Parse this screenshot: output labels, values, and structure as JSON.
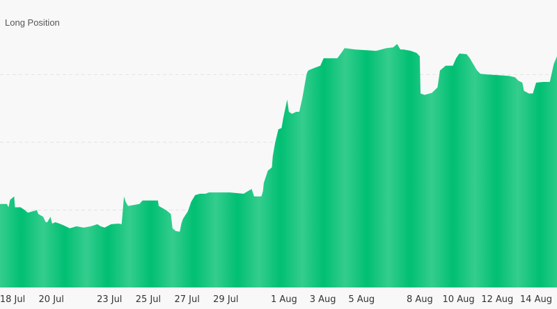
{
  "chart_data": {
    "type": "area",
    "legend": [
      "Long Position"
    ],
    "legend_placement": "top-left",
    "xlabel": "",
    "ylabel": "",
    "ylim": [
      0,
      4.1
    ],
    "grid": {
      "horizontal": true,
      "style": "dashed",
      "lines": [
        1,
        2,
        3
      ]
    },
    "x_ticks": [
      "18 Jul",
      "20 Jul",
      "23 Jul",
      "25 Jul",
      "27 Jul",
      "29 Jul",
      "1 Aug",
      "3 Aug",
      "5 Aug",
      "8 Aug",
      "10 Aug",
      "12 Aug",
      "14 Aug"
    ],
    "colors": {
      "fill": "#1ec981",
      "fill_dark": "#00bf73",
      "fill_light": "#35cd8e",
      "grid": "#e2e2e2",
      "background": "#f8f8f8"
    },
    "series": [
      {
        "name": "Long Position",
        "x": [
          "07-17 08",
          "07-17 17",
          "07-17 19",
          "07-17 21",
          "07-18 02",
          "07-18 03",
          "07-18 10",
          "07-18 15",
          "07-18 19",
          "07-19 04",
          "07-19 06",
          "07-19 08",
          "07-19 14",
          "07-19 17",
          "07-19 19",
          "07-19 23",
          "07-20 01",
          "07-20 05",
          "07-20 10",
          "07-20 14",
          "07-20 23",
          "07-21 07",
          "07-21 16",
          "07-22 01",
          "07-22 09",
          "07-22 13",
          "07-22 18",
          "07-23 02",
          "07-23 11",
          "07-23 15",
          "07-23 18",
          "07-23 20",
          "07-23 23",
          "07-24 04",
          "07-24 13",
          "07-24 17",
          "07-25 02",
          "07-25 12",
          "07-25 13",
          "07-25 19",
          "07-25 23",
          "07-26 04",
          "07-26 06",
          "07-26 10",
          "07-26 15",
          "07-26 17",
          "07-26 19",
          "07-27 01",
          "07-27 05",
          "07-27 10",
          "07-27 16",
          "07-27 23",
          "07-28 03",
          "07-28 12",
          "07-29 05",
          "07-29 22",
          "07-30 05",
          "07-30 08",
          "07-30 11",
          "07-30 20",
          "07-30 22",
          "07-30 23",
          "07-31 04",
          "07-31 09",
          "07-31 10",
          "07-31 13",
          "07-31 17",
          "07-31 21",
          "07-31 23",
          "08-01 02",
          "08-01 04",
          "08-01 06",
          "08-01 10",
          "08-01 15",
          "08-01 19",
          "08-01 23",
          "08-02 04",
          "08-02 06",
          "08-02 12",
          "08-02 21",
          "08-03 01",
          "08-03 18",
          "08-03 23",
          "08-04 03",
          "08-04 16",
          "08-05 18",
          "08-06 07",
          "08-06 15",
          "08-06 20",
          "08-07 00",
          "08-07 04",
          "08-07 13",
          "08-07 20",
          "08-08 00",
          "08-08 01",
          "08-08 06",
          "08-08 15",
          "08-08 22",
          "08-09 01",
          "08-09 08",
          "08-09 17",
          "08-09 21",
          "08-10 01",
          "08-10 10",
          "08-10 14",
          "08-10 18",
          "08-10 23",
          "08-11 03",
          "08-11 12",
          "08-12 01",
          "08-12 14",
          "08-12 22",
          "08-13 02",
          "08-13 07",
          "08-13 09",
          "08-13 15",
          "08-13 20",
          "08-14 00",
          "08-14 09",
          "08-14 17",
          "08-14 22",
          "08-15 02"
        ],
        "values": [
          1.09,
          1.09,
          1.04,
          1.15,
          1.2,
          1.04,
          1.04,
          1.0,
          0.96,
          0.99,
          1.0,
          0.94,
          0.9,
          0.82,
          0.82,
          0.9,
          0.8,
          0.82,
          0.8,
          0.78,
          0.73,
          0.76,
          0.74,
          0.76,
          0.79,
          0.76,
          0.74,
          0.79,
          0.8,
          0.79,
          1.2,
          1.12,
          1.06,
          1.07,
          1.09,
          1.14,
          1.14,
          1.14,
          1.06,
          1.02,
          0.99,
          0.94,
          0.73,
          0.69,
          0.68,
          0.8,
          0.87,
          0.98,
          1.12,
          1.22,
          1.24,
          1.24,
          1.26,
          1.26,
          1.26,
          1.24,
          1.29,
          1.31,
          1.2,
          1.2,
          1.28,
          1.4,
          1.58,
          1.63,
          1.79,
          1.99,
          2.19,
          2.21,
          2.35,
          2.52,
          2.63,
          2.45,
          2.42,
          2.45,
          2.45,
          2.67,
          3.01,
          3.06,
          3.09,
          3.13,
          3.24,
          3.24,
          3.32,
          3.39,
          3.37,
          3.35,
          3.39,
          3.4,
          3.45,
          3.37,
          3.37,
          3.35,
          3.32,
          3.27,
          2.72,
          2.7,
          2.73,
          2.81,
          3.06,
          3.13,
          3.13,
          3.24,
          3.31,
          3.3,
          3.24,
          3.16,
          3.06,
          3.01,
          3.0,
          2.99,
          2.98,
          2.96,
          2.91,
          2.88,
          2.76,
          2.72,
          2.72,
          2.88,
          2.89,
          2.89,
          3.16,
          3.27
        ]
      }
    ]
  }
}
